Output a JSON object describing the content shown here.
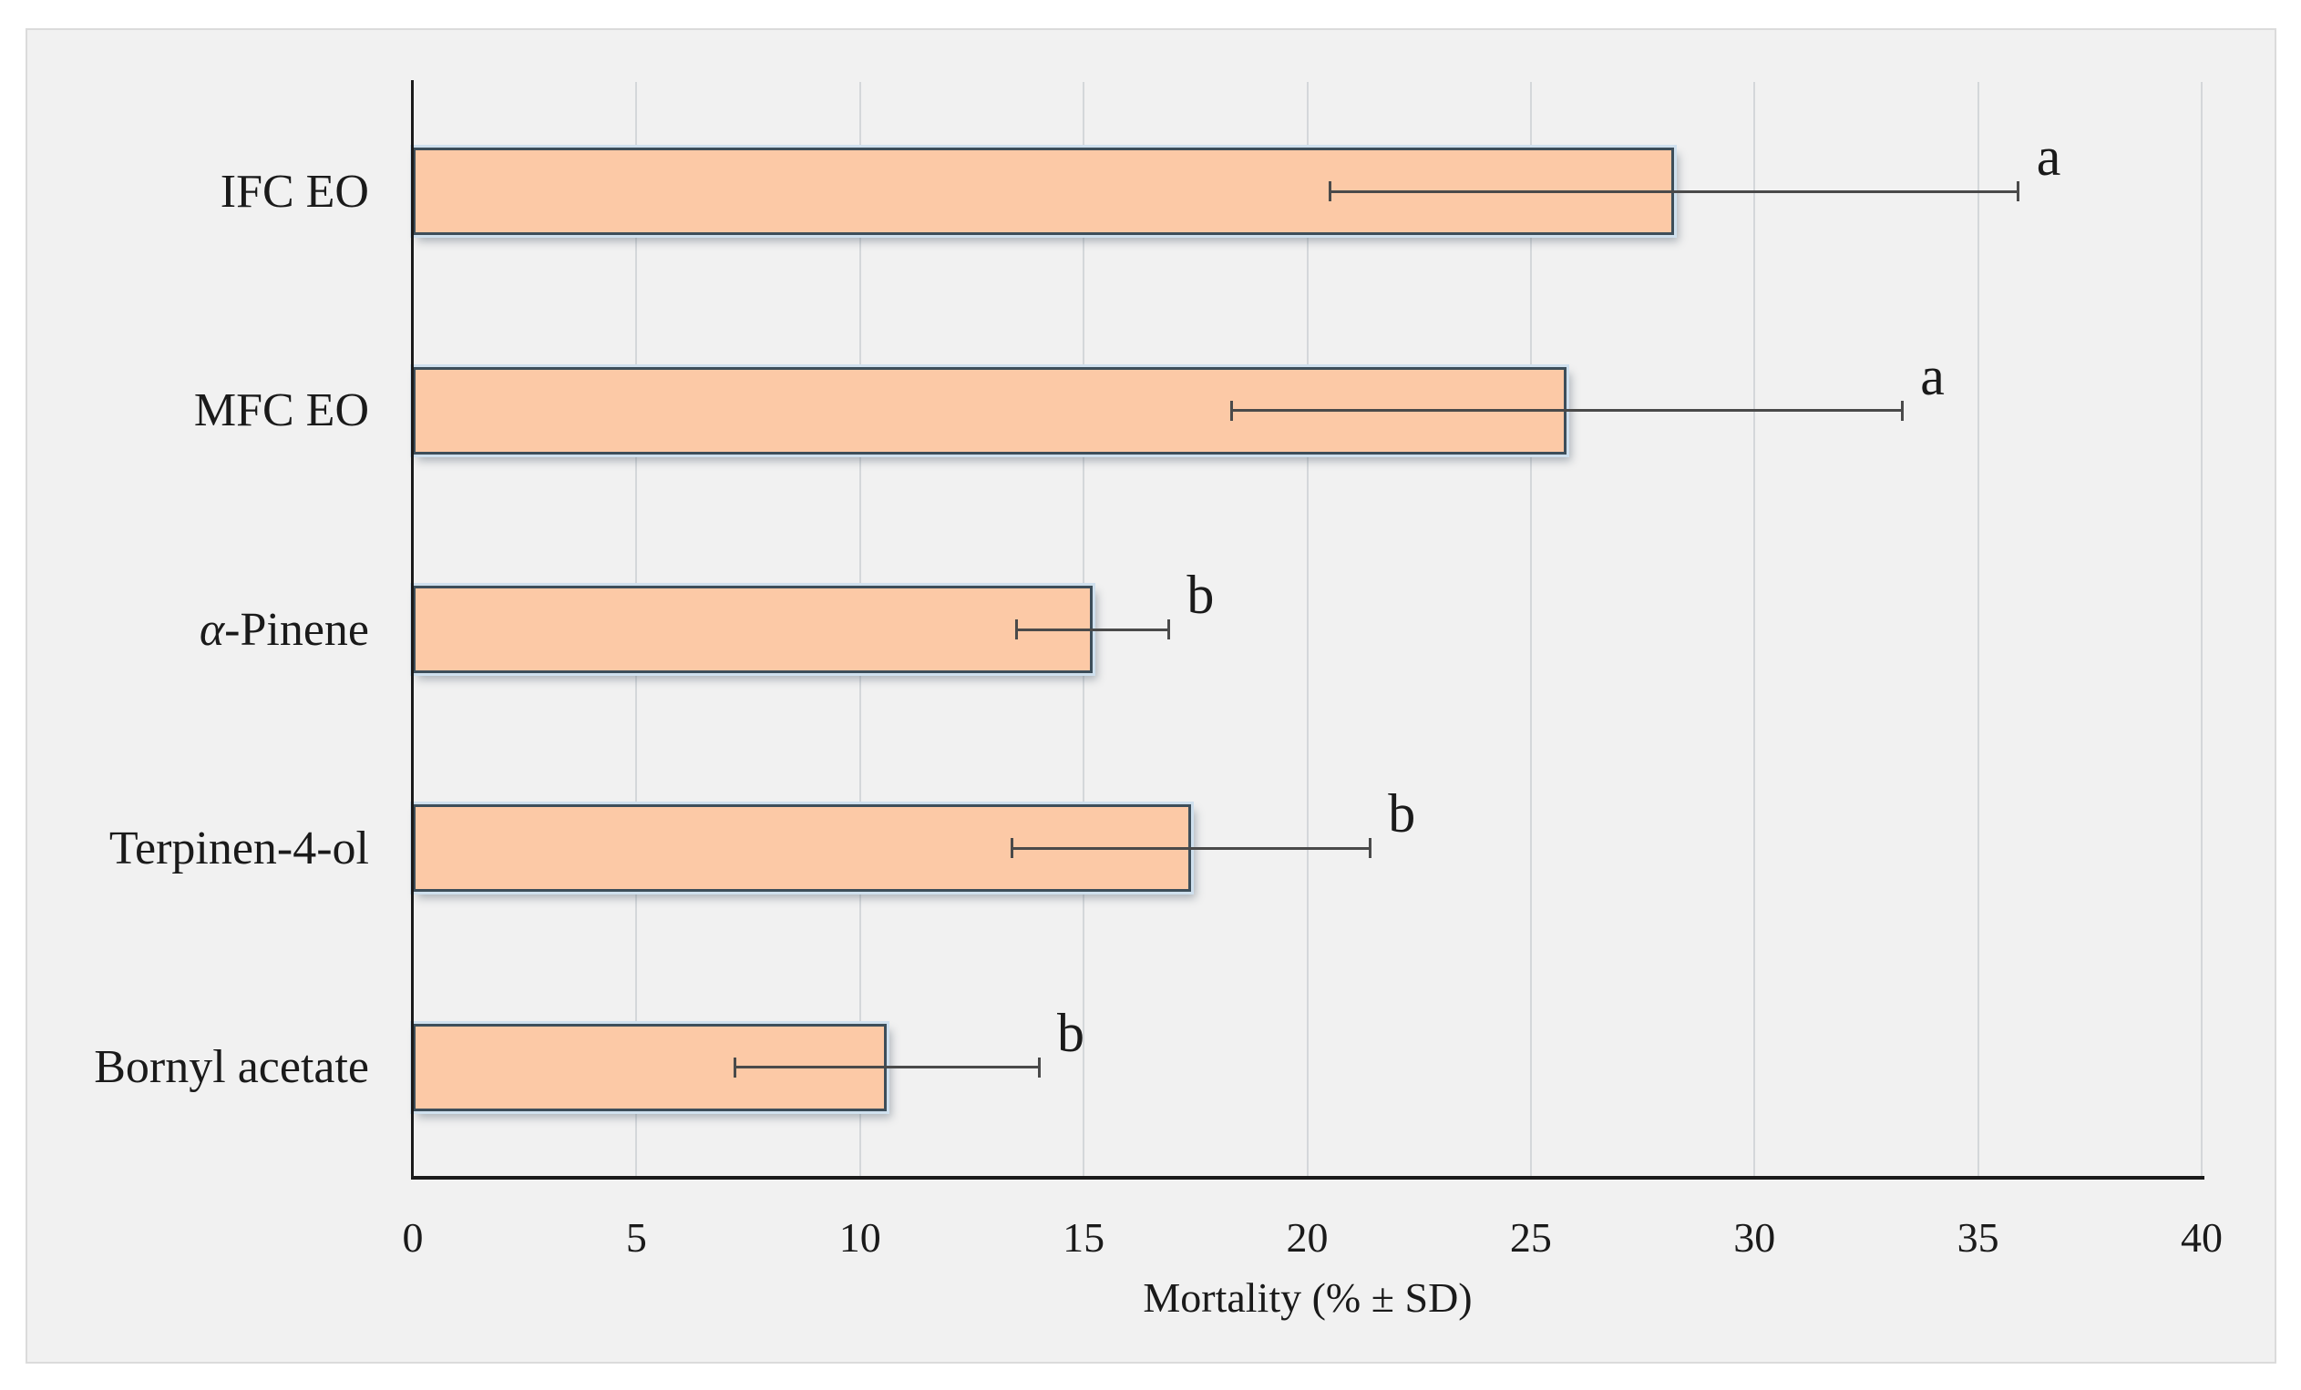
{
  "colors": {
    "panel-bg": "#f1f1f1",
    "panel-border": "#dbdbdb",
    "gridline": "#d4d7da",
    "axis": "#1a1a1a",
    "bar-fill": "#fcc9a6",
    "bar-border": "#3d4e5a",
    "bar-glow": "#cfe0ee",
    "error-bar": "#4a4a4a",
    "text": "#1a1a1a"
  },
  "chart_data": {
    "type": "bar",
    "orientation": "horizontal",
    "title": "",
    "xlabel": "Mortality (% ± SD)",
    "ylabel": "",
    "categories": [
      "IFC EO",
      "MFC EO",
      "α-Pinene",
      "Terpinen-4-ol",
      "Bornyl acetate"
    ],
    "values": [
      28.2,
      25.8,
      15.2,
      17.4,
      10.6
    ],
    "errors_sd": [
      7.7,
      7.5,
      1.7,
      4.0,
      3.4
    ],
    "sig_letters": [
      "a",
      "a",
      "b",
      "b",
      "b"
    ],
    "xticks": [
      0,
      5,
      10,
      15,
      20,
      25,
      30,
      35,
      40
    ],
    "xlim": [
      0,
      40
    ],
    "grid": true,
    "legend": false
  }
}
